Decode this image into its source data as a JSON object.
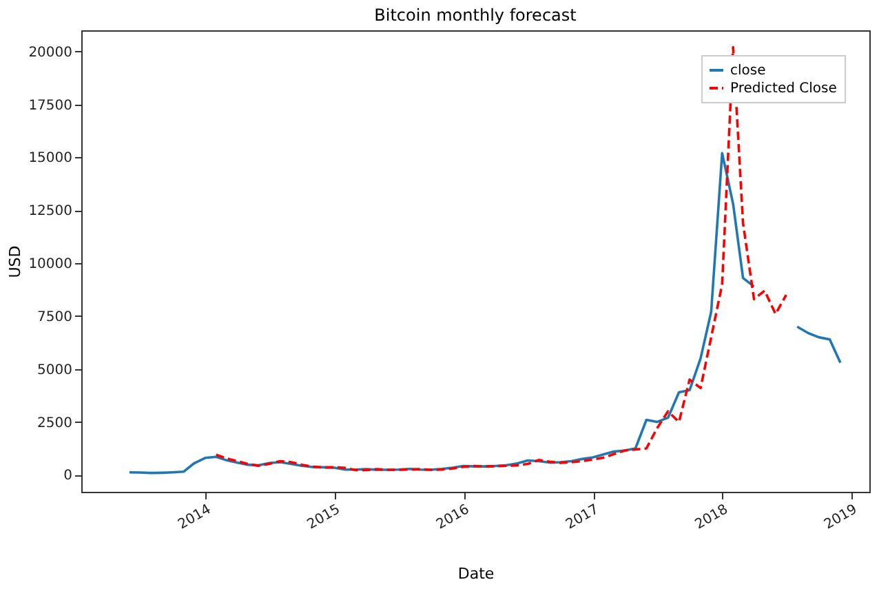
{
  "chart_data": {
    "type": "line",
    "title": "Bitcoin monthly forecast",
    "xlabel": "Date",
    "ylabel": "USD",
    "xlim": [
      "2013-01-15",
      "2019-02-20"
    ],
    "xticks": [
      {
        "value": "2014-01-01",
        "label": "2014"
      },
      {
        "value": "2015-01-01",
        "label": "2015"
      },
      {
        "value": "2016-01-01",
        "label": "2016"
      },
      {
        "value": "2017-01-01",
        "label": "2017"
      },
      {
        "value": "2018-01-01",
        "label": "2018"
      },
      {
        "value": "2019-01-01",
        "label": "2019"
      }
    ],
    "ylim": [
      -800,
      21000
    ],
    "yticks": [
      0,
      2500,
      5000,
      7500,
      10000,
      12500,
      15000,
      17500,
      20000
    ],
    "grid": false,
    "legend": "top right",
    "series": [
      {
        "name": "close",
        "color": "#1f77b4",
        "line_style": "solid",
        "x": [
          "2013-05-31",
          "2013-06-30",
          "2013-07-31",
          "2013-08-31",
          "2013-09-30",
          "2013-10-31",
          "2013-11-30",
          "2013-12-31",
          "2014-01-31",
          "2014-02-28",
          "2014-03-31",
          "2014-04-30",
          "2014-05-31",
          "2014-06-30",
          "2014-07-31",
          "2014-08-31",
          "2014-09-30",
          "2014-10-31",
          "2014-11-30",
          "2014-12-31",
          "2015-01-31",
          "2015-02-28",
          "2015-03-31",
          "2015-04-30",
          "2015-05-31",
          "2015-06-30",
          "2015-07-31",
          "2015-08-31",
          "2015-09-30",
          "2015-10-31",
          "2015-11-30",
          "2015-12-31",
          "2016-01-31",
          "2016-02-29",
          "2016-03-31",
          "2016-04-30",
          "2016-05-31",
          "2016-06-30",
          "2016-07-31",
          "2016-08-31",
          "2016-09-30",
          "2016-10-31",
          "2016-11-30",
          "2016-12-31",
          "2017-01-31",
          "2017-02-28",
          "2017-03-31",
          "2017-04-30",
          "2017-05-31",
          "2017-06-30",
          "2017-07-31",
          "2017-08-31",
          "2017-09-30",
          "2017-10-31",
          "2017-11-30",
          "2017-12-31",
          "2018-01-31",
          "2018-02-28",
          "2018-03-31",
          "2018-04-30",
          "2018-05-31",
          "2018-06-30",
          "2018-07-31",
          "2018-08-31",
          "2018-09-30",
          "2018-10-31",
          "2018-11-30"
        ],
        "values": [
          120,
          110,
          90,
          100,
          120,
          150,
          550,
          800,
          850,
          700,
          580,
          480,
          450,
          560,
          600,
          520,
          430,
          370,
          360,
          340,
          250,
          250,
          270,
          240,
          240,
          250,
          280,
          250,
          240,
          280,
          340,
          420,
          400,
          400,
          420,
          450,
          540,
          680,
          650,
          580,
          600,
          650,
          750,
          830,
          970,
          1100,
          1150,
          1250,
          2600,
          2500,
          2700,
          3900,
          4000,
          5500,
          7700,
          15200,
          12800,
          9300,
          8900,
          null,
          null,
          null,
          7000,
          6700,
          6500,
          6400,
          5300
        ]
      },
      {
        "name": "Predicted Close",
        "color": "#ff0000",
        "line_style": "dashed",
        "x": [
          "2014-01-31",
          "2014-02-28",
          "2014-03-31",
          "2014-04-30",
          "2014-05-31",
          "2014-06-30",
          "2014-07-31",
          "2014-08-31",
          "2014-09-30",
          "2014-10-31",
          "2014-11-30",
          "2014-12-31",
          "2015-01-31",
          "2015-02-28",
          "2015-03-31",
          "2015-04-30",
          "2015-05-31",
          "2015-06-30",
          "2015-07-31",
          "2015-08-31",
          "2015-09-30",
          "2015-10-31",
          "2015-11-30",
          "2015-12-31",
          "2016-01-31",
          "2016-02-29",
          "2016-03-31",
          "2016-04-30",
          "2016-05-31",
          "2016-06-30",
          "2016-07-31",
          "2016-08-31",
          "2016-09-30",
          "2016-10-31",
          "2016-11-30",
          "2016-12-31",
          "2017-01-31",
          "2017-02-28",
          "2017-03-31",
          "2017-04-30",
          "2017-05-31",
          "2017-06-30",
          "2017-07-31",
          "2017-08-31",
          "2017-09-30",
          "2017-10-31",
          "2017-11-30",
          "2017-12-31",
          "2018-01-31",
          "2018-02-28",
          "2018-03-31",
          "2018-04-30",
          "2018-05-31",
          "2018-06-30"
        ],
        "values": [
          950,
          780,
          650,
          520,
          430,
          520,
          650,
          600,
          480,
          390,
          350,
          360,
          330,
          230,
          230,
          270,
          240,
          240,
          250,
          270,
          240,
          250,
          300,
          380,
          420,
          400,
          410,
          430,
          450,
          520,
          700,
          620,
          570,
          600,
          650,
          730,
          820,
          980,
          1150,
          1200,
          1250,
          2200,
          3000,
          2500,
          4500,
          4100,
          6500,
          9000,
          20200,
          11900,
          8300,
          8700,
          7600,
          8500
        ]
      }
    ]
  }
}
